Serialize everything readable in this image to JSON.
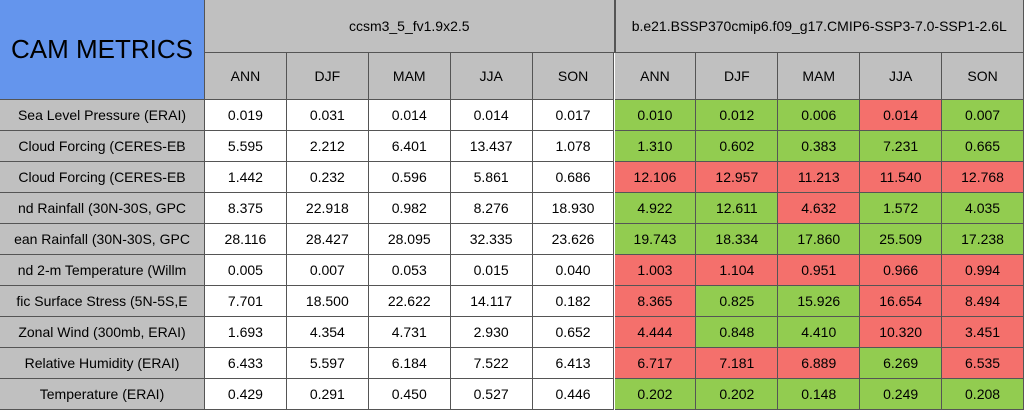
{
  "title": "CAM METRICS",
  "groups": [
    "ccsm3_5_fv1.9x2.5",
    "b.e21.BSSP370cmip6.f09_g17.CMIP6-SSP3-7.0-SSP1-2.6L"
  ],
  "columns": [
    "ANN",
    "DJF",
    "MAM",
    "JJA",
    "SON",
    "ANN",
    "DJF",
    "MAM",
    "JJA",
    "SON"
  ],
  "rows": [
    {
      "label": "Sea Level Pressure (ERAI)",
      "values": [
        "0.019",
        "0.031",
        "0.014",
        "0.014",
        "0.017",
        "0.010",
        "0.012",
        "0.006",
        "0.014",
        "0.007"
      ],
      "colors": [
        "#92cc50",
        "#92cc50",
        "#92cc50",
        "#f4706c",
        "#92cc50"
      ]
    },
    {
      "label": "Cloud Forcing (CERES-EB",
      "values": [
        "5.595",
        "2.212",
        "6.401",
        "13.437",
        "1.078",
        "1.310",
        "0.602",
        "0.383",
        "7.231",
        "0.665"
      ],
      "colors": [
        "#92cc50",
        "#92cc50",
        "#92cc50",
        "#92cc50",
        "#92cc50"
      ]
    },
    {
      "label": "Cloud Forcing (CERES-EB",
      "values": [
        "1.442",
        "0.232",
        "0.596",
        "5.861",
        "0.686",
        "12.106",
        "12.957",
        "11.213",
        "11.540",
        "12.768"
      ],
      "colors": [
        "#f4706c",
        "#f4706c",
        "#f4706c",
        "#f4706c",
        "#f4706c"
      ]
    },
    {
      "label": "nd Rainfall (30N-30S, GPC",
      "values": [
        "8.375",
        "22.918",
        "0.982",
        "8.276",
        "18.930",
        "4.922",
        "12.611",
        "4.632",
        "1.572",
        "4.035"
      ],
      "colors": [
        "#92cc50",
        "#92cc50",
        "#f4706c",
        "#92cc50",
        "#92cc50"
      ]
    },
    {
      "label": "ean Rainfall (30N-30S, GPC",
      "values": [
        "28.116",
        "28.427",
        "28.095",
        "32.335",
        "23.626",
        "19.743",
        "18.334",
        "17.860",
        "25.509",
        "17.238"
      ],
      "colors": [
        "#92cc50",
        "#92cc50",
        "#92cc50",
        "#92cc50",
        "#92cc50"
      ]
    },
    {
      "label": "nd 2-m Temperature (Willm",
      "values": [
        "0.005",
        "0.007",
        "0.053",
        "0.015",
        "0.040",
        "1.003",
        "1.104",
        "0.951",
        "0.966",
        "0.994"
      ],
      "colors": [
        "#f4706c",
        "#f4706c",
        "#f4706c",
        "#f4706c",
        "#f4706c"
      ]
    },
    {
      "label": "fic Surface Stress (5N-5S,E",
      "values": [
        "7.701",
        "18.500",
        "22.622",
        "14.117",
        "0.182",
        "8.365",
        "0.825",
        "15.926",
        "16.654",
        "8.494"
      ],
      "colors": [
        "#f4706c",
        "#92cc50",
        "#92cc50",
        "#f4706c",
        "#f4706c"
      ]
    },
    {
      "label": "Zonal Wind (300mb, ERAI)",
      "values": [
        "1.693",
        "4.354",
        "4.731",
        "2.930",
        "0.652",
        "4.444",
        "0.848",
        "4.410",
        "10.320",
        "3.451"
      ],
      "colors": [
        "#f4706c",
        "#92cc50",
        "#92cc50",
        "#f4706c",
        "#f4706c"
      ]
    },
    {
      "label": "Relative Humidity (ERAI)",
      "values": [
        "6.433",
        "5.597",
        "6.184",
        "7.522",
        "6.413",
        "6.717",
        "7.181",
        "6.889",
        "6.269",
        "6.535"
      ],
      "colors": [
        "#f4706c",
        "#f4706c",
        "#f4706c",
        "#92cc50",
        "#f4706c"
      ]
    },
    {
      "label": "Temperature (ERAI)",
      "values": [
        "0.429",
        "0.291",
        "0.450",
        "0.527",
        "0.446",
        "0.202",
        "0.202",
        "0.148",
        "0.249",
        "0.208"
      ],
      "colors": [
        "#92cc50",
        "#92cc50",
        "#92cc50",
        "#92cc50",
        "#92cc50"
      ]
    }
  ]
}
